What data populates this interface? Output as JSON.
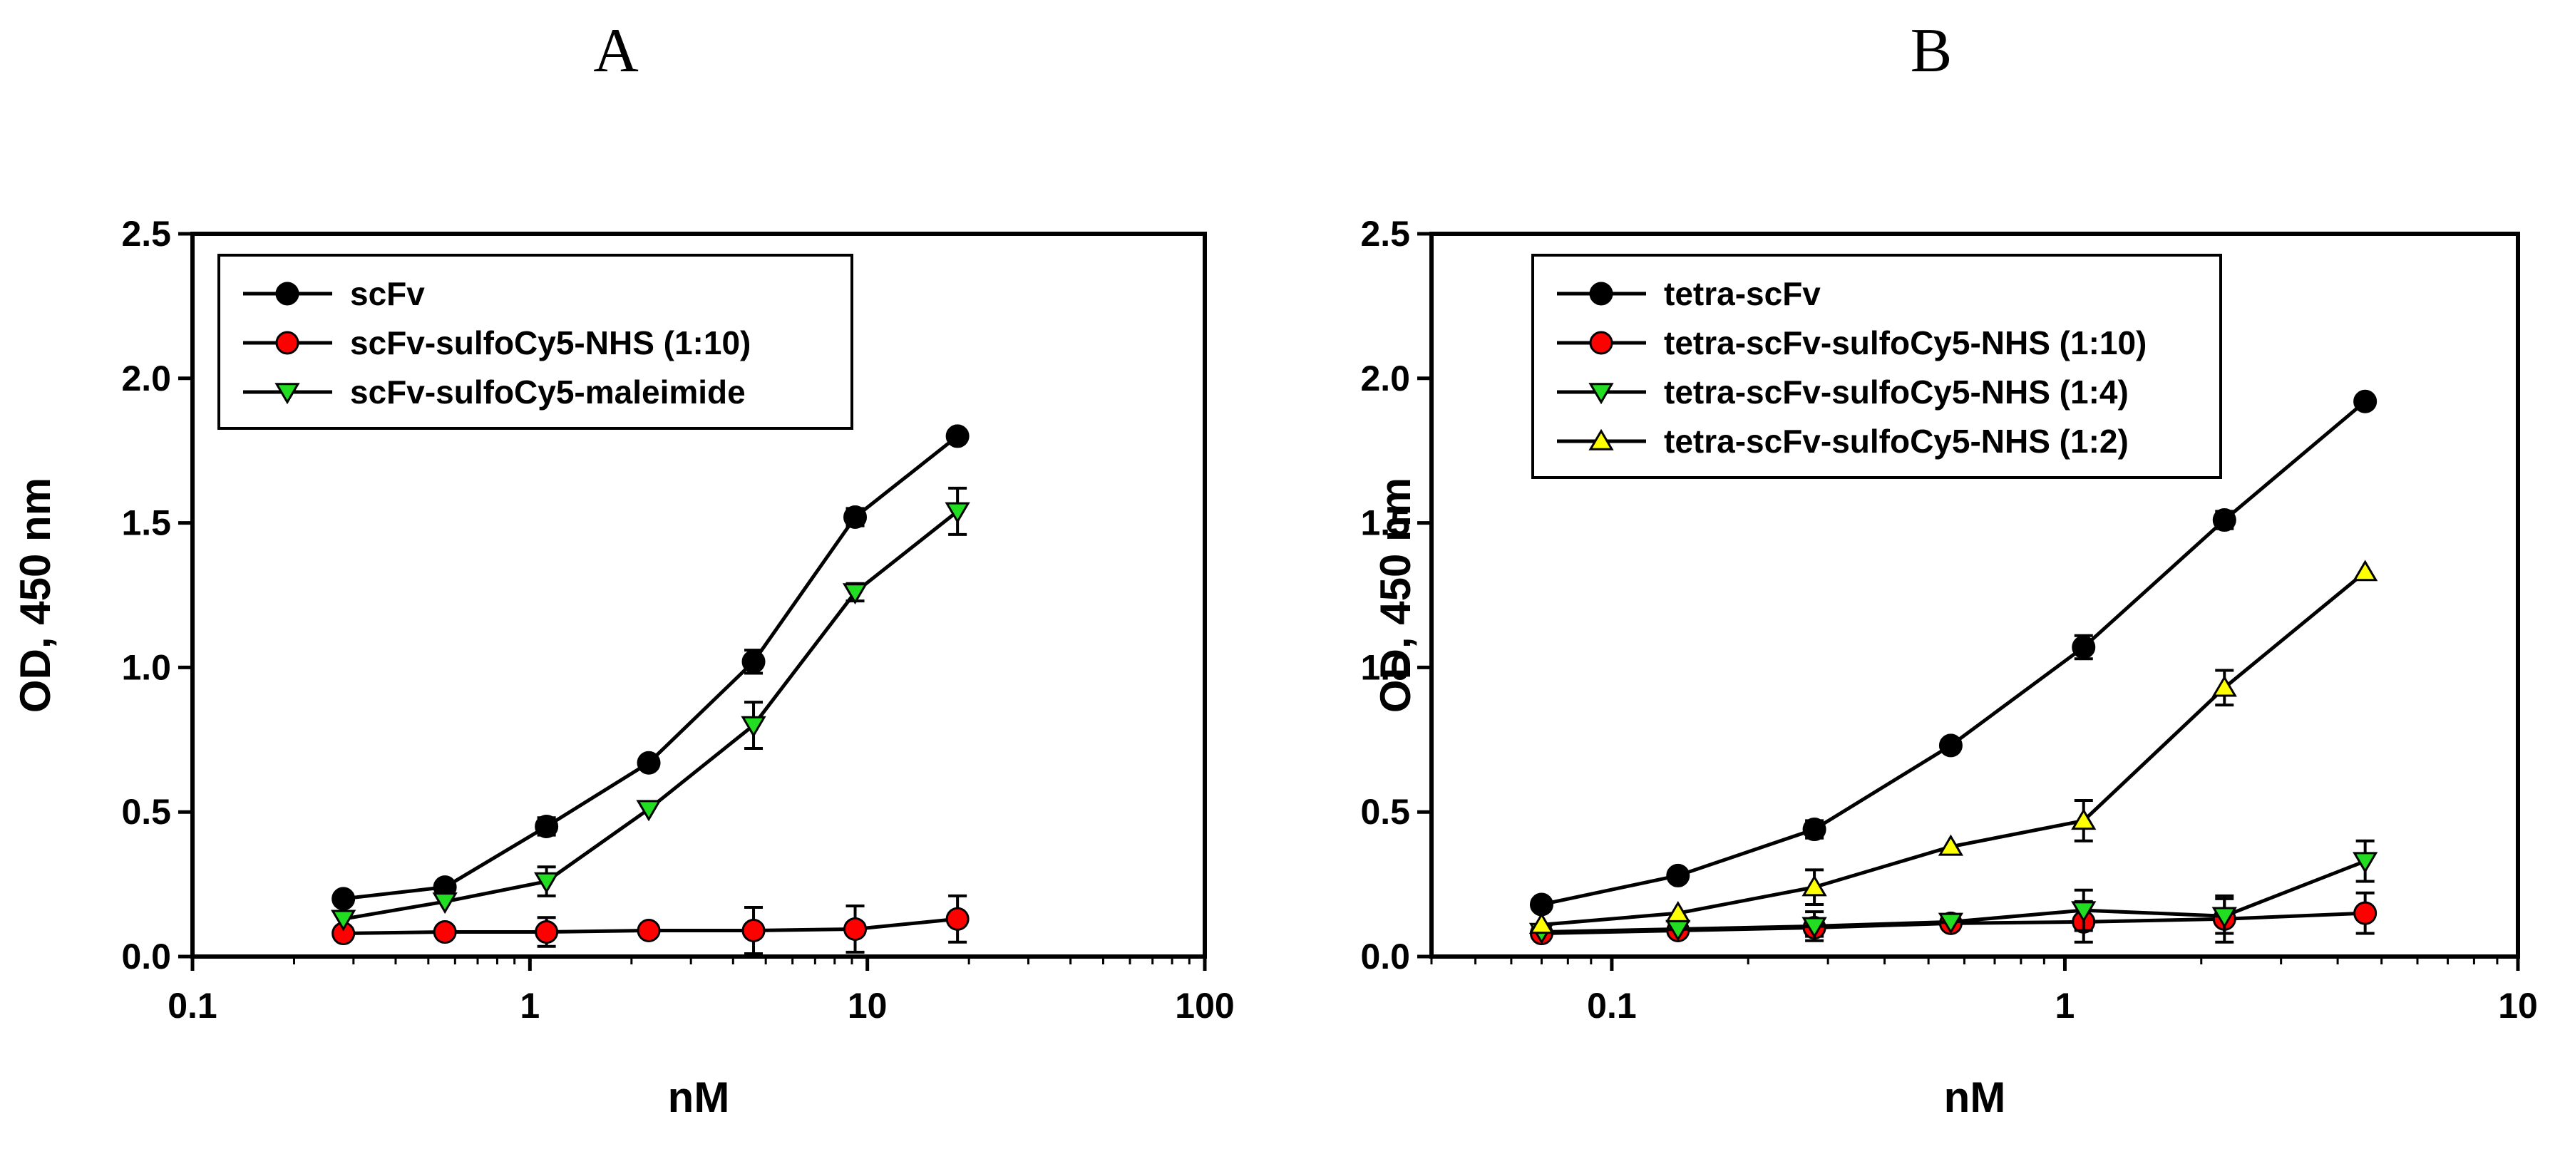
{
  "colors": {
    "black": "#000000",
    "red": "#ff0000",
    "green": "#22dd22",
    "yellow": "#ffff00"
  },
  "chart_data": [
    {
      "panel": "A",
      "type": "line",
      "title": "A",
      "xlabel": "nM",
      "ylabel": "OD, 450 nm",
      "xscale": "log",
      "xlim": [
        0.1,
        100
      ],
      "ylim": [
        0,
        2.5
      ],
      "xticks": [
        0.1,
        1,
        10,
        100
      ],
      "xtick_labels": [
        "0.1",
        "1",
        "10",
        "100"
      ],
      "yticks": [
        0,
        0.5,
        1,
        1.5,
        2,
        2.5
      ],
      "ytick_labels": [
        "0.0",
        "0.5",
        "1.0",
        "1.5",
        "2.0",
        "2.5"
      ],
      "legend_position": "top-left",
      "x": [
        0.28,
        0.56,
        1.12,
        2.25,
        4.6,
        9.2,
        18.5
      ],
      "series": [
        {
          "name": "scFv",
          "marker": "circle",
          "color": "#000000",
          "values": [
            0.2,
            0.24,
            0.45,
            0.67,
            1.02,
            1.52,
            1.8
          ],
          "errors": [
            0.0,
            0.0,
            0.03,
            0.0,
            0.04,
            0.03,
            0.0
          ]
        },
        {
          "name": "scFv-sulfoCy5-NHS (1:10)",
          "marker": "circle",
          "color": "#ff0000",
          "values": [
            0.08,
            0.085,
            0.085,
            0.09,
            0.09,
            0.095,
            0.13
          ],
          "errors": [
            0.0,
            0.0,
            0.05,
            0.0,
            0.08,
            0.08,
            0.08
          ]
        },
        {
          "name": "scFv-sulfoCy5-maleimide",
          "marker": "triangle-down",
          "color": "#22dd22",
          "values": [
            0.13,
            0.19,
            0.26,
            0.51,
            0.8,
            1.26,
            1.54
          ],
          "errors": [
            0.0,
            0.0,
            0.05,
            0.0,
            0.08,
            0.03,
            0.08
          ]
        }
      ]
    },
    {
      "panel": "B",
      "type": "line",
      "title": "B",
      "xlabel": "nM",
      "ylabel": "OD, 450 nm",
      "xscale": "log",
      "xlim": [
        0.04,
        10
      ],
      "ylim": [
        0,
        2.5
      ],
      "xticks": [
        0.1,
        1,
        10
      ],
      "xtick_labels": [
        "0.1",
        "1",
        "10"
      ],
      "yticks": [
        0,
        0.5,
        1,
        1.5,
        2,
        2.5
      ],
      "ytick_labels": [
        "0.0",
        "0.5",
        "1.0",
        "1.5",
        "2.0",
        "2.5"
      ],
      "legend_position": "top-left",
      "x": [
        0.07,
        0.14,
        0.28,
        0.56,
        1.1,
        2.25,
        4.6
      ],
      "series": [
        {
          "name": "tetra-scFv",
          "marker": "circle",
          "color": "#000000",
          "values": [
            0.18,
            0.28,
            0.44,
            0.73,
            1.07,
            1.51,
            1.92
          ],
          "errors": [
            0.0,
            0.0,
            0.03,
            0.0,
            0.04,
            0.03,
            0.0
          ]
        },
        {
          "name": "tetra-scFv-sulfoCy5-NHS (1:10)",
          "marker": "circle",
          "color": "#ff0000",
          "values": [
            0.08,
            0.09,
            0.1,
            0.115,
            0.12,
            0.13,
            0.15
          ],
          "errors": [
            0.0,
            0.0,
            0.03,
            0.0,
            0.07,
            0.08,
            0.07
          ]
        },
        {
          "name": "tetra-scFv-sulfoCy5-NHS (1:4)",
          "marker": "triangle-down",
          "color": "#22dd22",
          "values": [
            0.085,
            0.095,
            0.105,
            0.12,
            0.16,
            0.14,
            0.33
          ],
          "errors": [
            0.0,
            0.0,
            0.05,
            0.0,
            0.07,
            0.06,
            0.07
          ]
        },
        {
          "name": "tetra-scFv-sulfoCy5-NHS (1:2)",
          "marker": "triangle-up",
          "color": "#ffff00",
          "values": [
            0.11,
            0.15,
            0.24,
            0.38,
            0.47,
            0.93,
            1.33
          ],
          "errors": [
            0.0,
            0.0,
            0.06,
            0.0,
            0.07,
            0.06,
            0.0
          ]
        }
      ]
    }
  ]
}
